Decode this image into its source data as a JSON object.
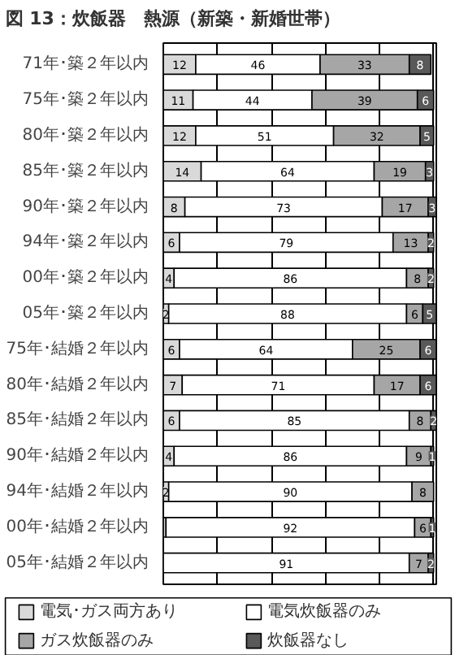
{
  "chart_data": {
    "type": "bar",
    "orientation": "horizontal",
    "stacked": true,
    "title": "図 13：炊飯器　熱源（新築・新婚世帯）",
    "categories": [
      "71年･築２年以内",
      "75年･築２年以内",
      "80年･築２年以内",
      "85年･築２年以内",
      "90年･築２年以内",
      "94年･築２年以内",
      "00年･築２年以内",
      "05年･築２年以内",
      "75年･結婚２年以内",
      "80年･結婚２年以内",
      "85年･結婚２年以内",
      "90年･結婚２年以内",
      "94年･結婚２年以内",
      "00年･結婚２年以内",
      "05年･結婚２年以内"
    ],
    "series": [
      {
        "name": "電気･ガス両方あり",
        "color": "#d9d9d9",
        "values": [
          12,
          11,
          12,
          14,
          8,
          6,
          4,
          2,
          6,
          7,
          6,
          4,
          2,
          1,
          null
        ],
        "value_labels": [
          "12",
          "11",
          "12",
          "14",
          "8",
          "6",
          "4",
          "2",
          "6",
          "7",
          "6",
          "4",
          "2",
          null,
          null
        ]
      },
      {
        "name": "電気炊飯器のみ",
        "color": "#ffffff",
        "values": [
          46,
          44,
          51,
          64,
          73,
          79,
          86,
          88,
          64,
          71,
          85,
          86,
          90,
          92,
          91
        ],
        "value_labels": [
          "46",
          "44",
          "51",
          "64",
          "73",
          "79",
          "86",
          "88",
          "64",
          "71",
          "85",
          "86",
          "90",
          "92",
          "91"
        ]
      },
      {
        "name": "ガス炊飯器のみ",
        "color": "#a6a6a6",
        "values": [
          33,
          39,
          32,
          19,
          17,
          13,
          8,
          6,
          25,
          17,
          8,
          9,
          8,
          6,
          7
        ],
        "value_labels": [
          "33",
          "39",
          "32",
          "19",
          "17",
          "13",
          "8",
          "6",
          "25",
          "17",
          "8",
          "9",
          "8",
          "6",
          "7"
        ]
      },
      {
        "name": "炊飯器なし",
        "color": "#595959",
        "values": [
          8,
          6,
          5,
          3,
          3,
          2,
          2,
          5,
          6,
          6,
          2,
          1,
          null,
          1,
          2
        ],
        "value_labels": [
          "8",
          "6",
          "5",
          "3",
          "3",
          "2",
          "2",
          "5",
          "6",
          "6",
          "2",
          "1",
          null,
          "1",
          "2"
        ]
      }
    ],
    "xlim": [
      0,
      101
    ],
    "xticks": [
      {
        "value": 0,
        "label": null
      },
      {
        "value": 20,
        "label": null
      },
      {
        "value": 40,
        "label": null
      },
      {
        "value": 60,
        "label": null
      },
      {
        "value": 80,
        "label": null
      },
      {
        "value": 100,
        "label": null
      }
    ],
    "grid": "x",
    "tick_labels": "y",
    "legend": "bottom"
  }
}
